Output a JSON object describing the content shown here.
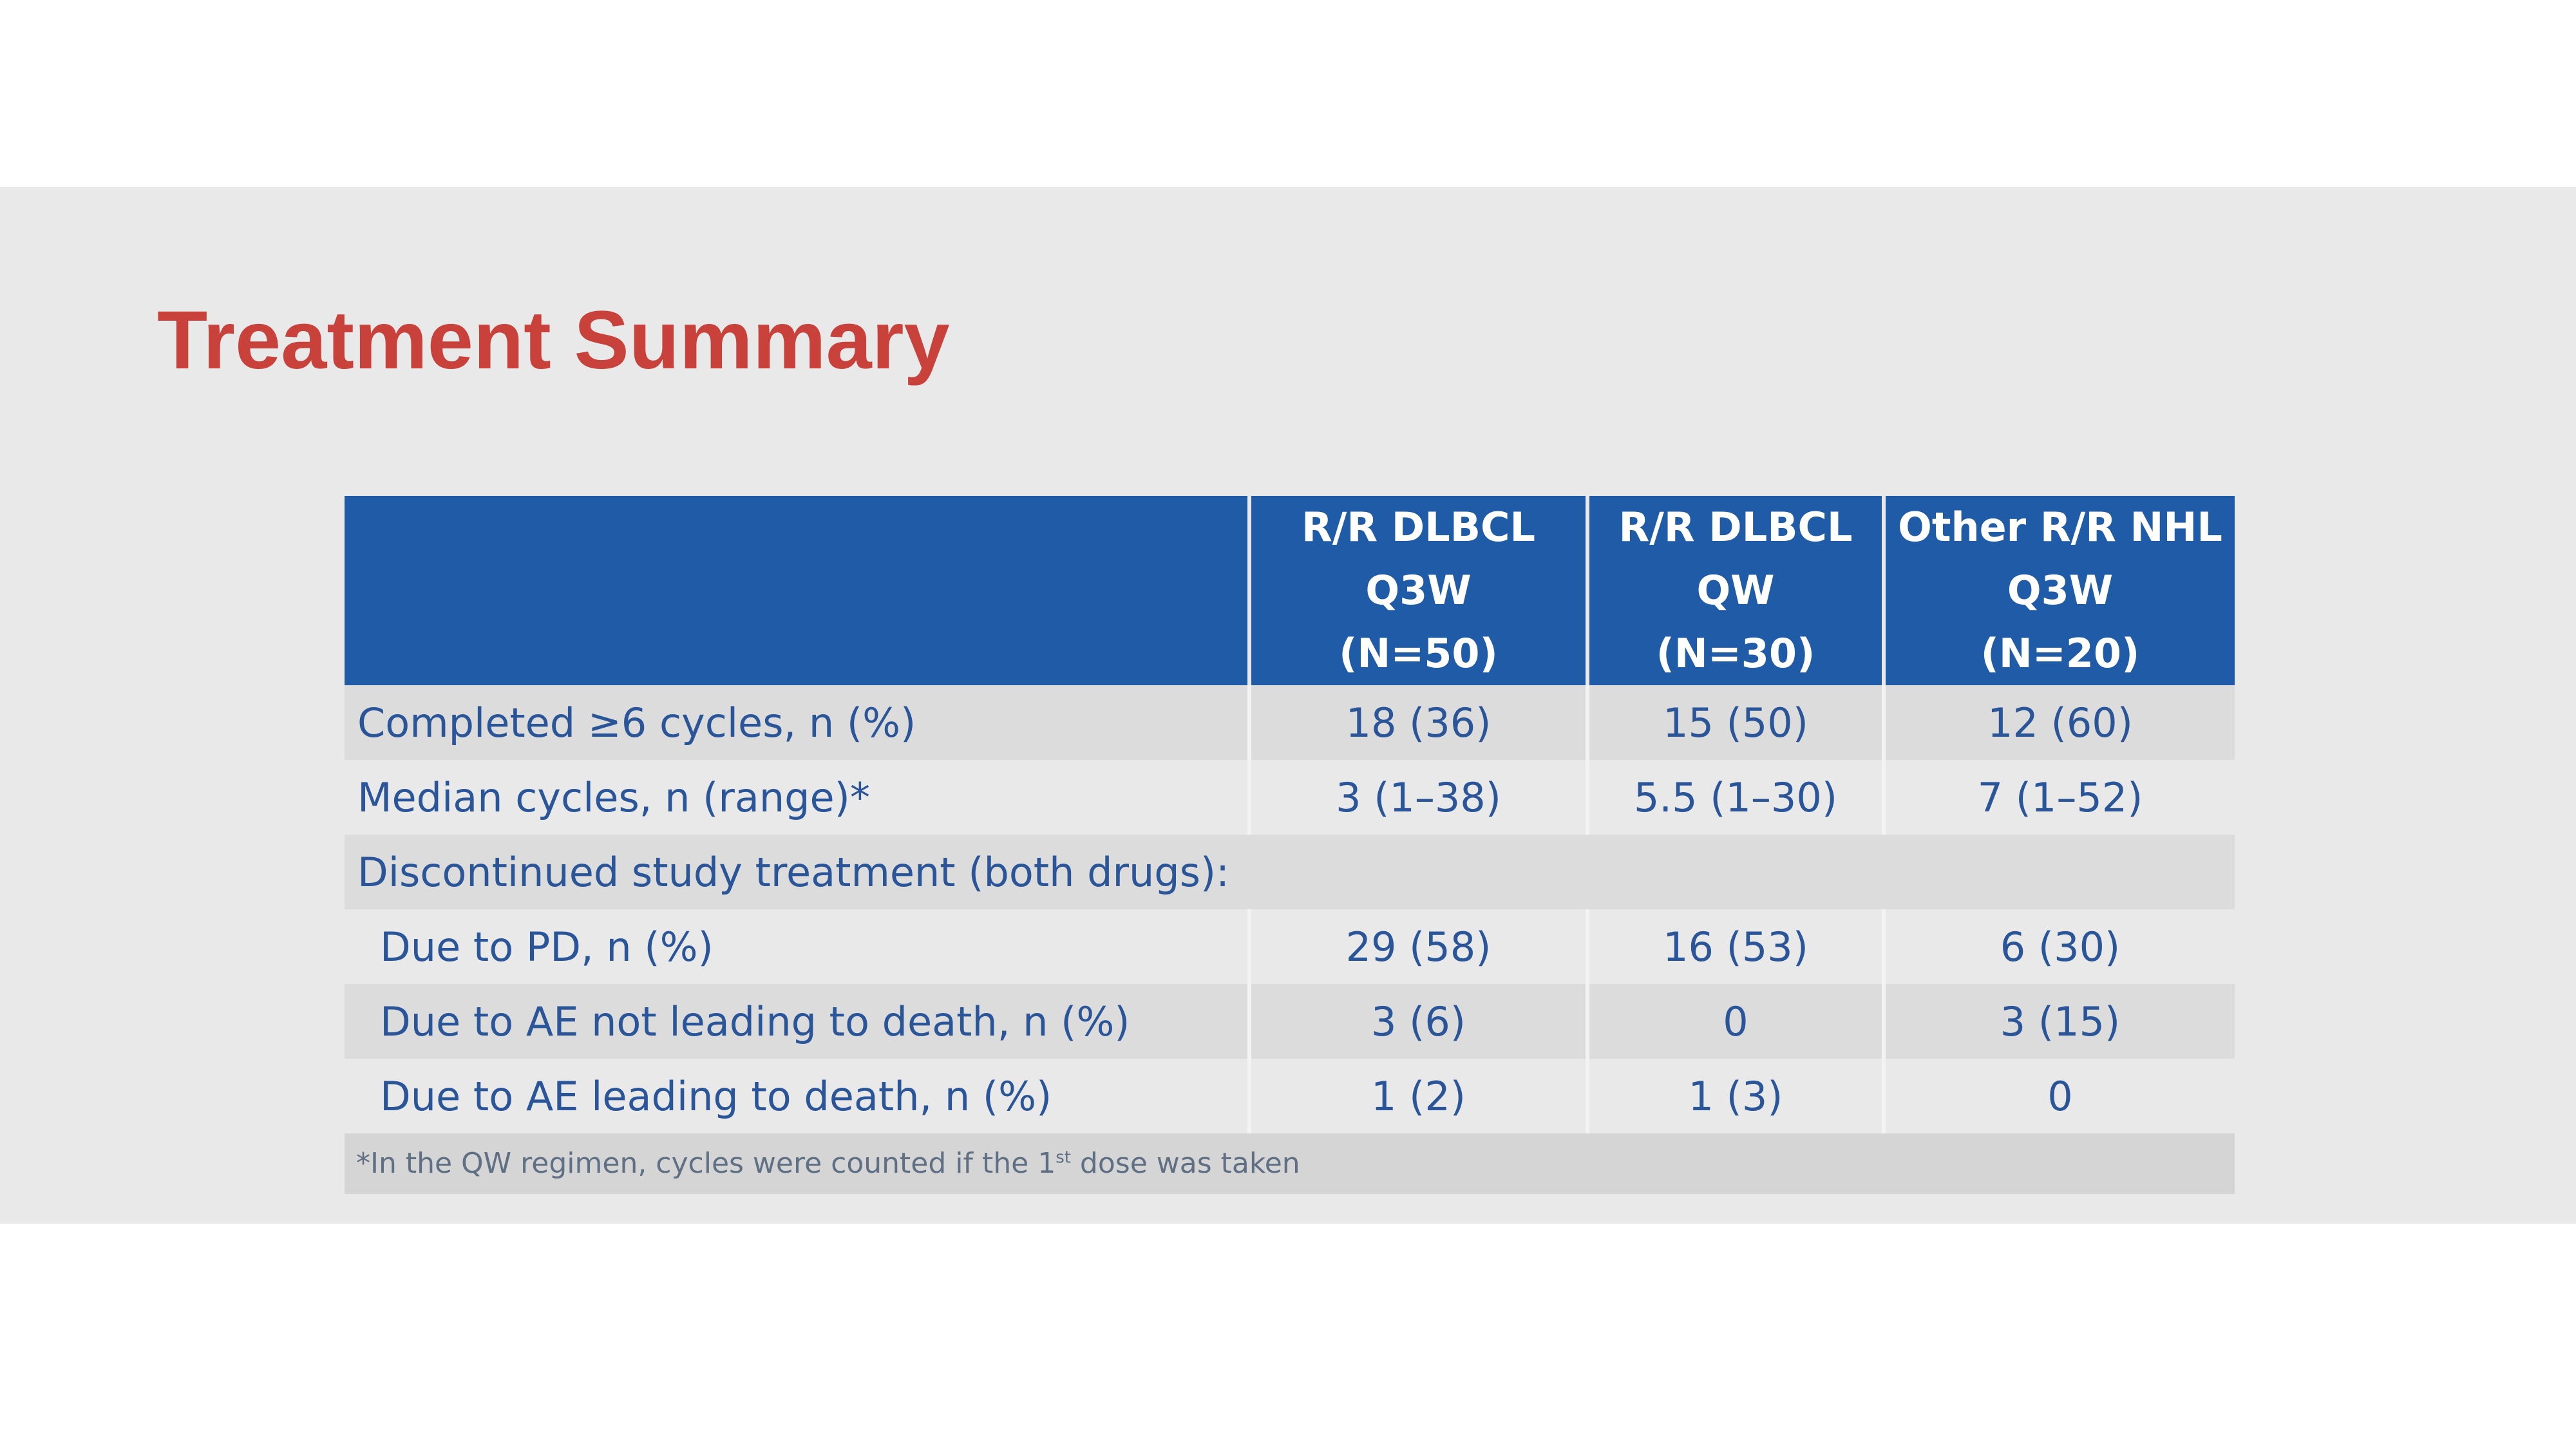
{
  "title": "Treatment Summary",
  "table": {
    "columns": [
      {
        "lines": [
          "R/R DLBCL",
          "Q3W",
          "(N=50)"
        ]
      },
      {
        "lines": [
          "R/R DLBCL",
          "QW",
          "(N=30)"
        ]
      },
      {
        "lines": [
          "Other R/R NHL",
          "Q3W",
          "(N=20)"
        ]
      }
    ],
    "rows": [
      {
        "label": "Completed ≥6 cycles, n (%)",
        "values": [
          "18 (36)",
          "15 (50)",
          "12 (60)"
        ]
      },
      {
        "label": "Median cycles, n (range)*",
        "values": [
          "3 (1–38)",
          "5.5 (1–30)",
          "7 (1–52)"
        ]
      },
      {
        "label": "Discontinued study treatment (both drugs):"
      },
      {
        "label": "Due to PD, n (%)",
        "values": [
          "29 (58)",
          "16 (53)",
          "6 (30)"
        ]
      },
      {
        "label": "Due to AE not leading to death, n (%)",
        "values": [
          "3 (6)",
          "0",
          "3 (15)"
        ]
      },
      {
        "label": "Due to AE leading to death, n (%)",
        "values": [
          "1 (2)",
          "1 (3)",
          "0"
        ]
      }
    ],
    "footnote": {
      "before": "*In the QW regimen, cycles were counted if the 1",
      "superscript": "st",
      "after": " dose was taken"
    }
  },
  "colors": {
    "title": "#c8413a",
    "header_bg": "#1f5ba6",
    "body_text": "#2a5599",
    "background": "#e9e9e9"
  }
}
